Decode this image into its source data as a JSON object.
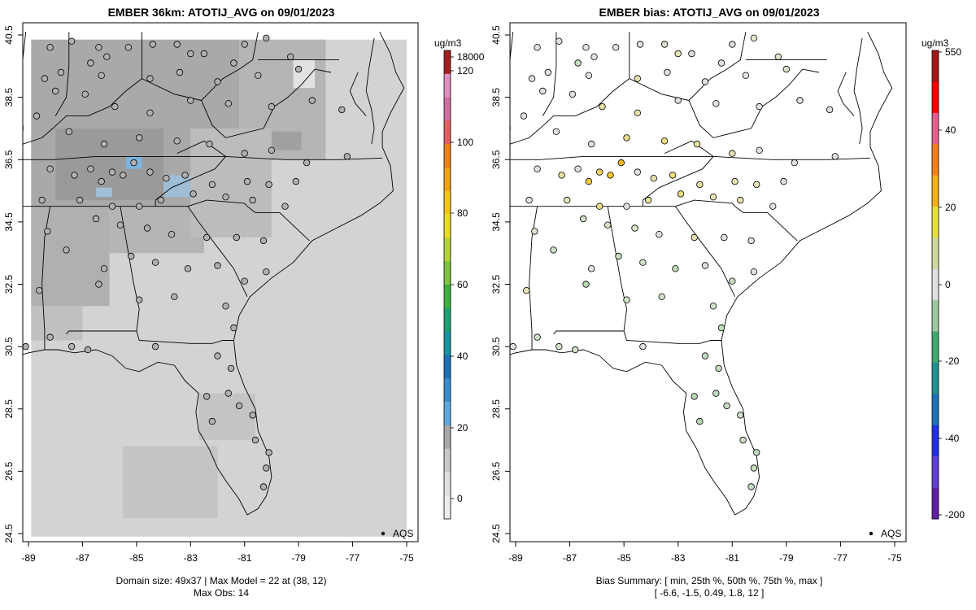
{
  "panels": [
    {
      "title": "EMBER 36km: ATOTIJ_AVG on 09/01/2023",
      "legend_label": "AQS",
      "footer_lines": [
        "Domain size: 49x37 | Max Model = 22 at (38, 12)",
        "Max Obs: 14"
      ],
      "colorbar": {
        "unit": "ug/m3",
        "tick_labels": [
          "18000",
          "120",
          "100",
          "80",
          "60",
          "40",
          "20",
          "0"
        ],
        "colors": [
          "#ececec",
          "#e0e0e0",
          "#c8c8c8",
          "#a8a8a8",
          "#5fa8dc",
          "#3a8ccd",
          "#1e6fb5",
          "#1a93a0",
          "#20a070",
          "#3fb040",
          "#7dc242",
          "#b5d33a",
          "#e7dc2a",
          "#f2c51e",
          "#f1a21a",
          "#e8821a",
          "#e06060",
          "#d070a0",
          "#e090c0",
          "#a02020"
        ],
        "value_min": -6.6,
        "value_max": 18000,
        "top_color_tick": 120
      }
    },
    {
      "title": "EMBER bias: ATOTIJ_AVG on 09/01/2023",
      "legend_label": "AQS",
      "footer_lines": [
        "Bias Summary: [ min, 25th %, 50th %, 75th %, max ]",
        "[ -6.6,  -1.5,  0.49,  1.8,   12 ]"
      ],
      "colorbar": {
        "unit": "ug/m3",
        "tick_labels": [
          "550",
          "40",
          "20",
          "0",
          "-20",
          "-40",
          "-200"
        ],
        "colors": [
          "#a01818",
          "#ff0000",
          "#e06090",
          "#f28020",
          "#f0b020",
          "#e8e040",
          "#d0d8a0",
          "#e0e0e0",
          "#9cc8a0",
          "#40a870",
          "#209090",
          "#2070b8",
          "#2030e0",
          "#6040d0",
          "#6020a0"
        ]
      }
    }
  ],
  "chart_data": [
    {
      "type": "scatter",
      "title": "EMBER 36km: ATOTIJ_AVG on 09/01/2023",
      "x_tick_labels": [
        "-89",
        "-87",
        "-85",
        "-83",
        "-81",
        "-79",
        "-77",
        "-75"
      ],
      "y_tick_labels": [
        "24.5",
        "26.5",
        "28.5",
        "30.5",
        "32.5",
        "34.5",
        "36.5",
        "38.5",
        "40.5"
      ],
      "xlim": [
        -89.3,
        -74.8
      ],
      "ylim": [
        24.3,
        40.9
      ],
      "grid": false,
      "legend": "bottom-right",
      "series": [
        {
          "name": "AQS",
          "points": [
            [
              -88.2,
              40.1
            ],
            [
              -87.4,
              40.3
            ],
            [
              -86.4,
              40.1
            ],
            [
              -85.3,
              40.1
            ],
            [
              -84.4,
              40.2
            ],
            [
              -83.5,
              40.2
            ],
            [
              -82.5,
              39.9
            ],
            [
              -81.0,
              40.2
            ],
            [
              -80.2,
              40.4
            ],
            [
              -79.3,
              39.8
            ],
            [
              -86.7,
              39.6
            ],
            [
              -86.1,
              39.8
            ],
            [
              -83.0,
              39.9
            ],
            [
              -81.4,
              39.6
            ],
            [
              -88.4,
              39.1
            ],
            [
              -87.8,
              39.3
            ],
            [
              -86.3,
              39.2
            ],
            [
              -84.5,
              39.1
            ],
            [
              -83.4,
              39.3
            ],
            [
              -82.0,
              39.0
            ],
            [
              -80.5,
              39.2
            ],
            [
              -79.0,
              39.4
            ],
            [
              -88.0,
              38.7
            ],
            [
              -86.9,
              38.6
            ],
            [
              -85.8,
              38.2
            ],
            [
              -84.5,
              38.0
            ],
            [
              -83.0,
              38.4
            ],
            [
              -81.6,
              38.3
            ],
            [
              -80.0,
              38.2
            ],
            [
              -78.5,
              38.4
            ],
            [
              -77.4,
              38.1
            ],
            [
              -88.7,
              37.9
            ],
            [
              -87.5,
              37.4
            ],
            [
              -86.2,
              37.0
            ],
            [
              -84.9,
              37.2
            ],
            [
              -83.5,
              37.1
            ],
            [
              -82.3,
              37.0
            ],
            [
              -81.0,
              36.7
            ],
            [
              -80.0,
              36.8
            ],
            [
              -78.7,
              36.4
            ],
            [
              -77.2,
              36.6
            ],
            [
              -88.2,
              36.2
            ],
            [
              -87.3,
              36.0
            ],
            [
              -86.7,
              36.2
            ],
            [
              -86.3,
              35.8
            ],
            [
              -85.9,
              36.1
            ],
            [
              -85.5,
              36.0
            ],
            [
              -85.1,
              36.4
            ],
            [
              -84.5,
              36.1
            ],
            [
              -83.9,
              35.9
            ],
            [
              -83.2,
              36.0
            ],
            [
              -82.2,
              35.7
            ],
            [
              -80.9,
              35.8
            ],
            [
              -80.1,
              35.7
            ],
            [
              -79.1,
              35.8
            ],
            [
              -88.5,
              35.2
            ],
            [
              -87.1,
              35.2
            ],
            [
              -85.9,
              35.0
            ],
            [
              -84.9,
              35.0
            ],
            [
              -84.1,
              35.2
            ],
            [
              -82.9,
              35.4
            ],
            [
              -81.7,
              35.3
            ],
            [
              -80.7,
              35.2
            ],
            [
              -79.5,
              35.0
            ],
            [
              -88.3,
              34.2
            ],
            [
              -86.5,
              34.6
            ],
            [
              -85.6,
              34.4
            ],
            [
              -84.6,
              34.3
            ],
            [
              -83.7,
              34.1
            ],
            [
              -82.4,
              34.0
            ],
            [
              -81.3,
              34.0
            ],
            [
              -80.3,
              33.9
            ],
            [
              -87.6,
              33.6
            ],
            [
              -86.2,
              33.0
            ],
            [
              -85.2,
              33.4
            ],
            [
              -84.3,
              33.2
            ],
            [
              -83.1,
              33.0
            ],
            [
              -82.0,
              33.1
            ],
            [
              -81.0,
              32.6
            ],
            [
              -80.2,
              32.9
            ],
            [
              -88.6,
              32.3
            ],
            [
              -86.4,
              32.5
            ],
            [
              -84.9,
              32.0
            ],
            [
              -83.6,
              32.1
            ],
            [
              -81.7,
              31.8
            ],
            [
              -81.4,
              31.1
            ],
            [
              -89.1,
              30.5
            ],
            [
              -88.2,
              30.8
            ],
            [
              -87.4,
              30.5
            ],
            [
              -86.8,
              30.4
            ],
            [
              -84.3,
              30.5
            ],
            [
              -82.0,
              30.2
            ],
            [
              -81.5,
              29.8
            ],
            [
              -82.4,
              28.9
            ],
            [
              -81.6,
              29.0
            ],
            [
              -81.2,
              28.6
            ],
            [
              -80.7,
              28.3
            ],
            [
              -82.2,
              28.1
            ],
            [
              -80.6,
              27.5
            ],
            [
              -80.1,
              27.1
            ],
            [
              -80.2,
              26.6
            ],
            [
              -80.3,
              26.0
            ]
          ]
        }
      ]
    },
    {
      "type": "scatter",
      "title": "EMBER bias: ATOTIJ_AVG on 09/01/2023",
      "x_tick_labels": [
        "-89",
        "-87",
        "-85",
        "-83",
        "-81",
        "-79",
        "-77",
        "-75"
      ],
      "y_tick_labels": [
        "24.5",
        "26.5",
        "28.5",
        "30.5",
        "32.5",
        "34.5",
        "36.5",
        "38.5",
        "40.5"
      ],
      "xlim": [
        -89.3,
        -74.8
      ],
      "ylim": [
        24.3,
        40.9
      ],
      "grid": false,
      "legend": "bottom-right",
      "series": [
        {
          "name": "AQS",
          "points": [
            [
              -88.2,
              40.1
            ],
            [
              -87.4,
              40.3
            ],
            [
              -86.4,
              40.1
            ],
            [
              -85.3,
              40.1
            ],
            [
              -84.4,
              40.2
            ],
            [
              -83.5,
              40.2
            ],
            [
              -82.5,
              39.9
            ],
            [
              -81.0,
              40.2
            ],
            [
              -80.2,
              40.4
            ],
            [
              -79.3,
              39.8
            ],
            [
              -86.7,
              39.6
            ],
            [
              -86.1,
              39.8
            ],
            [
              -83.0,
              39.9
            ],
            [
              -81.4,
              39.6
            ],
            [
              -88.4,
              39.1
            ],
            [
              -87.8,
              39.3
            ],
            [
              -86.3,
              39.2
            ],
            [
              -84.5,
              39.1
            ],
            [
              -83.4,
              39.3
            ],
            [
              -82.0,
              39.0
            ],
            [
              -80.5,
              39.2
            ],
            [
              -79.0,
              39.4
            ],
            [
              -88.0,
              38.7
            ],
            [
              -86.9,
              38.6
            ],
            [
              -85.8,
              38.2
            ],
            [
              -84.5,
              38.0
            ],
            [
              -83.0,
              38.4
            ],
            [
              -81.6,
              38.3
            ],
            [
              -80.0,
              38.2
            ],
            [
              -78.5,
              38.4
            ],
            [
              -77.4,
              38.1
            ],
            [
              -88.7,
              37.9
            ],
            [
              -87.5,
              37.4
            ],
            [
              -86.2,
              37.0
            ],
            [
              -84.9,
              37.2
            ],
            [
              -83.5,
              37.1
            ],
            [
              -82.3,
              37.0
            ],
            [
              -81.0,
              36.7
            ],
            [
              -80.0,
              36.8
            ],
            [
              -78.7,
              36.4
            ],
            [
              -77.2,
              36.6
            ],
            [
              -88.2,
              36.2
            ],
            [
              -87.3,
              36.0
            ],
            [
              -86.7,
              36.2
            ],
            [
              -86.3,
              35.8
            ],
            [
              -85.9,
              36.1
            ],
            [
              -85.5,
              36.0
            ],
            [
              -85.1,
              36.4
            ],
            [
              -84.5,
              36.1
            ],
            [
              -83.9,
              35.9
            ],
            [
              -83.2,
              36.0
            ],
            [
              -82.2,
              35.7
            ],
            [
              -80.9,
              35.8
            ],
            [
              -80.1,
              35.7
            ],
            [
              -79.1,
              35.8
            ],
            [
              -88.5,
              35.2
            ],
            [
              -87.1,
              35.2
            ],
            [
              -85.9,
              35.0
            ],
            [
              -84.9,
              35.0
            ],
            [
              -84.1,
              35.2
            ],
            [
              -82.9,
              35.4
            ],
            [
              -81.7,
              35.3
            ],
            [
              -80.7,
              35.2
            ],
            [
              -79.5,
              35.0
            ],
            [
              -88.3,
              34.2
            ],
            [
              -86.5,
              34.6
            ],
            [
              -85.6,
              34.4
            ],
            [
              -84.6,
              34.3
            ],
            [
              -83.7,
              34.1
            ],
            [
              -82.4,
              34.0
            ],
            [
              -81.3,
              34.0
            ],
            [
              -80.3,
              33.9
            ],
            [
              -87.6,
              33.6
            ],
            [
              -86.2,
              33.0
            ],
            [
              -85.2,
              33.4
            ],
            [
              -84.3,
              33.2
            ],
            [
              -83.1,
              33.0
            ],
            [
              -82.0,
              33.1
            ],
            [
              -81.0,
              32.6
            ],
            [
              -80.2,
              32.9
            ],
            [
              -88.6,
              32.3
            ],
            [
              -86.4,
              32.5
            ],
            [
              -84.9,
              32.0
            ],
            [
              -83.6,
              32.1
            ],
            [
              -81.7,
              31.8
            ],
            [
              -81.4,
              31.1
            ],
            [
              -89.1,
              30.5
            ],
            [
              -88.2,
              30.8
            ],
            [
              -87.4,
              30.5
            ],
            [
              -86.8,
              30.4
            ],
            [
              -84.3,
              30.5
            ],
            [
              -82.0,
              30.2
            ],
            [
              -81.5,
              29.8
            ],
            [
              -82.4,
              28.9
            ],
            [
              -81.6,
              29.0
            ],
            [
              -81.2,
              28.6
            ],
            [
              -80.7,
              28.3
            ],
            [
              -82.2,
              28.1
            ],
            [
              -80.6,
              27.5
            ],
            [
              -80.1,
              27.1
            ],
            [
              -80.2,
              26.6
            ],
            [
              -80.3,
              26.0
            ]
          ],
          "bias_colors": [
            "#e0e0e0",
            "#e0e0e0",
            "#e0e0e0",
            "#e0e0e0",
            "#e0e0e0",
            "#d8dcc8",
            "#e0e0e0",
            "#e0e0e0",
            "#e6e4c8",
            "#d8e4cc",
            "#c8dcc0",
            "#e0e0e0",
            "#e6e6b0",
            "#e0e0e0",
            "#e0e0e0",
            "#e0e0e0",
            "#e0e0e0",
            "#e6e4b0",
            "#e0e0e0",
            "#e0e0e0",
            "#e0e0e0",
            "#d8e4cc",
            "#e0e0e0",
            "#e0e0e0",
            "#e6e0a8",
            "#e6e0a8",
            "#e0e0e0",
            "#e0e0e0",
            "#e0e0e0",
            "#e0e0e0",
            "#e0e0e0",
            "#e0e0e0",
            "#e0e0e0",
            "#e0e0e0",
            "#e6dc8c",
            "#e8dc80",
            "#e8e2a0",
            "#e6e4b8",
            "#e0e0e0",
            "#e0e0e0",
            "#e0e0e0",
            "#e0e0e0",
            "#e8e0a0",
            "#e0e0e0",
            "#f0cc40",
            "#ecd460",
            "#f0c830",
            "#f0b820",
            "#e0e0e0",
            "#e6e0a8",
            "#eadc80",
            "#e8e0a0",
            "#e6e2b0",
            "#e6e4b8",
            "#e0e0e0",
            "#e0e0e0",
            "#e6e4b8",
            "#e8dc80",
            "#e0e0e0",
            "#e8e0a0",
            "#e6dc80",
            "#e6e2b0",
            "#e6e2b0",
            "#e0e0e0",
            "#d8e4cc",
            "#d0e0c8",
            "#d0e0c8",
            "#d8e4cc",
            "#e0e0e0",
            "#e6e2b0",
            "#e0e0e0",
            "#e0e0e0",
            "#d0e0c8",
            "#e0e0e0",
            "#c8dcc0",
            "#d0e0c8",
            "#c0d8b8",
            "#e0e0e0",
            "#c8dcc0",
            "#e0e0e0",
            "#e6e4b8",
            "#b8d8b0",
            "#d0e0c8",
            "#d0e0c8",
            "#d0e0c8",
            "#c0dcc0",
            "#e0e0e0",
            "#d0e0c8",
            "#d0e0c8",
            "#d0e0c8",
            "#e0e0e0",
            "#c0dcc0",
            "#c8dcc0",
            "#b8d8b0",
            "#c0dcc0",
            "#c8dcc0",
            "#d0e0c8",
            "#b8d8b0",
            "#c8dcc0",
            "#c0dcc0",
            "#c8dcc0",
            "#c0dcc0"
          ]
        }
      ]
    }
  ]
}
